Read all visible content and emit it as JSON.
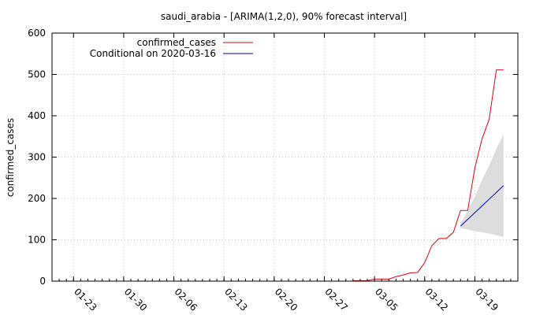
{
  "chart_data": {
    "type": "line",
    "title": "saudi_arabia -  [ARIMA(1,2,0), 90% forecast interval]",
    "xlabel": "",
    "ylabel": "confirmed_cases",
    "ylim": [
      0,
      600
    ],
    "y_ticks": [
      0,
      100,
      200,
      300,
      400,
      500,
      600
    ],
    "x_range": [
      "2020-01-20",
      "2020-03-25"
    ],
    "x_ticks": [
      "01-23",
      "01-30",
      "02-06",
      "02-13",
      "02-20",
      "02-27",
      "03-05",
      "03-12",
      "03-19"
    ],
    "x_tick_dates": [
      "2020-01-23",
      "2020-01-30",
      "2020-02-06",
      "2020-02-13",
      "2020-02-20",
      "2020-02-27",
      "2020-03-05",
      "2020-03-12",
      "2020-03-19"
    ],
    "grid": true,
    "legend_position": "top-left",
    "series": [
      {
        "name": "confirmed_cases",
        "color": "#e8000b",
        "x": [
          "2020-03-02",
          "2020-03-03",
          "2020-03-04",
          "2020-03-05",
          "2020-03-06",
          "2020-03-07",
          "2020-03-08",
          "2020-03-09",
          "2020-03-10",
          "2020-03-11",
          "2020-03-12",
          "2020-03-13",
          "2020-03-14",
          "2020-03-15",
          "2020-03-16",
          "2020-03-17",
          "2020-03-18",
          "2020-03-19",
          "2020-03-20",
          "2020-03-21",
          "2020-03-22",
          "2020-03-23"
        ],
        "values": [
          1,
          1,
          1,
          5,
          5,
          5,
          11,
          15,
          20,
          21,
          45,
          86,
          103,
          103,
          118,
          171,
          171,
          274,
          344,
          392,
          511,
          511
        ]
      },
      {
        "name": "Conditional on 2020-03-16",
        "color": "#0000cc",
        "x": [
          "2020-03-17",
          "2020-03-23"
        ],
        "values": [
          133,
          231
        ]
      }
    ],
    "forecast_interval": {
      "label": "90% forecast interval",
      "color": "#dddddd",
      "x": [
        "2020-03-17",
        "2020-03-18",
        "2020-03-19",
        "2020-03-20",
        "2020-03-21",
        "2020-03-22",
        "2020-03-23"
      ],
      "lower": [
        128,
        125,
        121,
        118,
        115,
        111,
        107
      ],
      "upper": [
        139,
        170,
        205,
        245,
        280,
        320,
        355
      ]
    }
  }
}
